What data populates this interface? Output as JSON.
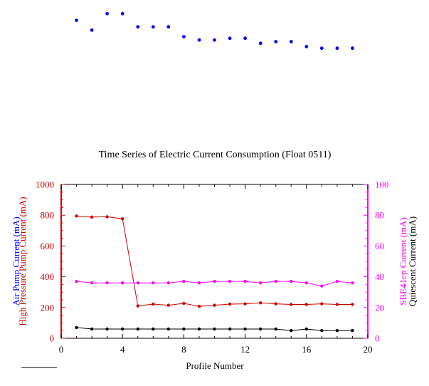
{
  "chart_data": [
    {
      "type": "scatter",
      "title": "",
      "xlabel": "",
      "ylabel": "",
      "color": "#0000ff",
      "series": [
        {
          "x": [
            1,
            2,
            3,
            4,
            5,
            6,
            7,
            8,
            9,
            10,
            11,
            12,
            13,
            14,
            15,
            16,
            17,
            18,
            19
          ],
          "values": [
            20.0,
            19.7,
            20.2,
            20.2,
            19.8,
            19.8,
            19.8,
            19.5,
            19.4,
            19.4,
            19.45,
            19.45,
            19.3,
            19.35,
            19.35,
            19.2,
            19.15,
            19.15,
            19.15
          ]
        }
      ],
      "ylim": [
        16.5,
        20.4
      ],
      "axes_visible": false
    },
    {
      "type": "line",
      "title": "Time Series of Electric Current Consumption (Float 0511)",
      "xlabel": "Profile Number",
      "xlim": [
        0,
        20
      ],
      "xticks": [
        "0",
        "4",
        "8",
        "12",
        "16",
        "20"
      ],
      "left_axis": {
        "ylabels": [
          {
            "text": "Air Pump Current (mA)",
            "color": "#0000ff"
          },
          {
            "text": "High Pressure Pump Current (mA)",
            "color": "#cc0000"
          }
        ],
        "ylim": [
          0,
          1000
        ],
        "yticks": [
          "0",
          "200",
          "400",
          "600",
          "800",
          "1000"
        ],
        "color": "#cc0000"
      },
      "right_axis": {
        "ylabels": [
          {
            "text": "SBE41cp Current (mA)",
            "color": "#ff00ff"
          },
          {
            "text": "Quiescent Current (mA)",
            "color": "#000000"
          }
        ],
        "ylim": [
          0,
          100
        ],
        "yticks": [
          "0",
          "20",
          "40",
          "60",
          "80",
          "100"
        ],
        "color": "#ff00ff"
      },
      "grid": false,
      "series": [
        {
          "axis": "left",
          "color": "#cc0000",
          "x": [
            1,
            2,
            3,
            4,
            5,
            6,
            7,
            8,
            9,
            10,
            11,
            12,
            13,
            14,
            15,
            16,
            17,
            18,
            19
          ],
          "values": [
            795,
            788,
            790,
            777,
            210,
            222,
            215,
            227,
            208,
            215,
            222,
            224,
            230,
            224,
            220,
            220,
            224,
            220,
            220
          ]
        },
        {
          "axis": "right",
          "color": "#ff00ff",
          "x": [
            1,
            2,
            3,
            4,
            5,
            6,
            7,
            8,
            9,
            10,
            11,
            12,
            13,
            14,
            15,
            16,
            17,
            18,
            19
          ],
          "values": [
            37,
            36,
            36,
            36,
            36,
            36,
            36,
            37,
            36,
            37,
            37,
            37,
            36,
            37,
            37,
            36,
            34,
            37,
            36
          ]
        },
        {
          "axis": "right",
          "color": "#000000",
          "x": [
            1,
            2,
            3,
            4,
            5,
            6,
            7,
            8,
            9,
            10,
            11,
            12,
            13,
            14,
            15,
            16,
            17,
            18,
            19
          ],
          "values": [
            7,
            6,
            6,
            6,
            6,
            6,
            6,
            6,
            6,
            6,
            6,
            6,
            6,
            6,
            5,
            6,
            5,
            5,
            5
          ]
        }
      ]
    }
  ]
}
